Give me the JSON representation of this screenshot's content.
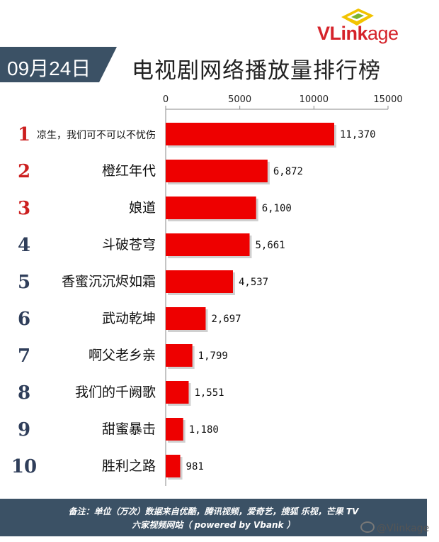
{
  "logo": {
    "brand_v": "VLink",
    "brand_rest": "age"
  },
  "header": {
    "date": "09月24日",
    "title": "电视剧网络播放量排行榜"
  },
  "chart_data": {
    "type": "bar",
    "orientation": "horizontal",
    "categories": [
      "凉生，我们可不可以不忧伤",
      "橙红年代",
      "娘道",
      "斗破苍穹",
      "香蜜沉沉烬如霜",
      "武动乾坤",
      "啊父老乡亲",
      "我们的千阙歌",
      "甜蜜暴击",
      "胜利之路"
    ],
    "ranks": [
      "1",
      "2",
      "3",
      "4",
      "5",
      "6",
      "7",
      "8",
      "9",
      "10"
    ],
    "values": [
      11370,
      6872,
      6100,
      5661,
      4537,
      2697,
      1799,
      1551,
      1180,
      981
    ],
    "value_labels": [
      "11,370",
      "6,872",
      "6,100",
      "5,661",
      "4,537",
      "2,697",
      "1,799",
      "1,551",
      "1,180",
      "981"
    ],
    "xlim": [
      0,
      15000
    ],
    "xticks": [
      "0",
      "5000",
      "10000",
      "15000"
    ],
    "bar_color": "#ee0000",
    "rank_colors": {
      "top3": "#cc1f1f",
      "rest": "#2f3e5a"
    },
    "grid": false
  },
  "footer": {
    "line1": "备注：单位（万次）数据来自优酷，腾讯视频，爱奇艺，搜狐 乐视，芒果 TV",
    "line2": "六家视频网站（ powered by Vbank ）"
  },
  "watermark": "@Vlinkage"
}
